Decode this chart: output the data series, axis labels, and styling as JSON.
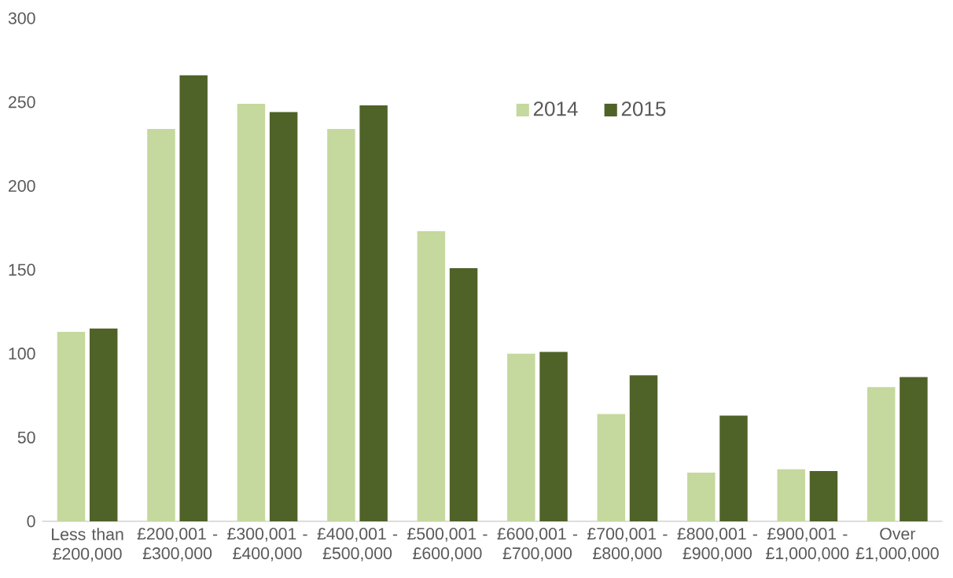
{
  "chart_data": {
    "type": "bar",
    "categories": [
      "Less than £200,000",
      "£200,001 - £300,000",
      "£300,001 - £400,000",
      "£400,001 - £500,000",
      "£500,001 - £600,000",
      "£600,001 - £700,000",
      "£700,001 - £800,000",
      "£800,001 - £900,000",
      "£900,001 - £1,000,000",
      "Over £1,000,000"
    ],
    "series": [
      {
        "name": "2014",
        "color": "#c5d89e",
        "values": [
          113,
          234,
          249,
          234,
          173,
          100,
          64,
          29,
          31,
          80
        ]
      },
      {
        "name": "2015",
        "color": "#4f6228",
        "values": [
          115,
          266,
          244,
          248,
          151,
          101,
          87,
          63,
          30,
          86
        ]
      }
    ],
    "ylim": [
      0,
      300
    ],
    "yticks": [
      0,
      50,
      100,
      150,
      200,
      250,
      300
    ],
    "legend": "top right"
  }
}
